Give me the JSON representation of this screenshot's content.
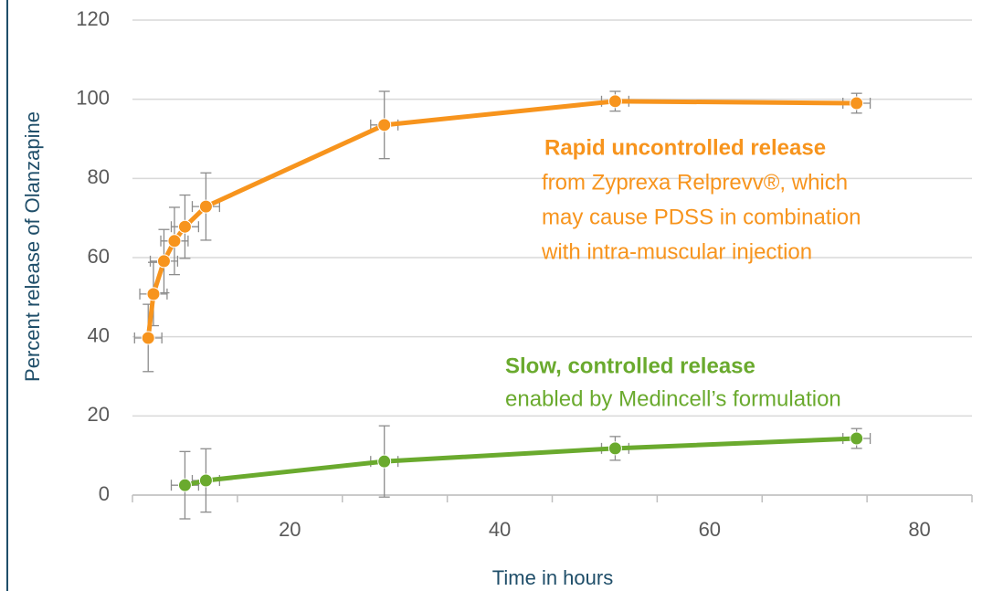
{
  "chart_data": {
    "type": "line",
    "xlabel": "Time in hours",
    "ylabel": "Percent release of Olanzapine",
    "xlim": [
      5,
      85
    ],
    "xticks": [
      20,
      40,
      60,
      80
    ],
    "xtick_marks": [
      5,
      15,
      25,
      35,
      45,
      55,
      65,
      75,
      85
    ],
    "ylim": [
      0,
      120
    ],
    "yticks": [
      0,
      20,
      40,
      60,
      80,
      100,
      120
    ],
    "grid": true,
    "series": [
      {
        "name": "Zyprexa Relprevv",
        "color": "#f7941d",
        "x": [
          6.5,
          7,
          8,
          9,
          10,
          12,
          29,
          51,
          74
        ],
        "values": [
          39.7,
          50.8,
          59.1,
          64.2,
          67.8,
          72.9,
          93.5,
          99.5,
          99
        ],
        "errors": [
          8.5,
          8,
          8,
          8.5,
          8,
          8.5,
          8.5,
          2.5,
          2.5
        ],
        "xerrors": [
          1.3,
          1.3,
          1.3,
          1.3,
          1.3,
          1.3,
          1.3,
          1.3,
          1.3
        ]
      },
      {
        "name": "Medincell formulation",
        "color": "#6aaa2e",
        "x": [
          10,
          12,
          29,
          51,
          74
        ],
        "values": [
          2.5,
          3.7,
          8.5,
          11.8,
          14.3
        ],
        "errors": [
          8.5,
          8,
          9,
          3,
          2.5
        ],
        "xerrors": [
          1.3,
          1.3,
          1.3,
          1.3,
          1.3
        ]
      }
    ],
    "annotations": [
      {
        "title": "Rapid uncontrolled release",
        "lines": [
          "from Zyprexa Relprevv®, which",
          "may cause PDSS in combination",
          "with intra-muscular injection"
        ],
        "color": "#f7941d"
      },
      {
        "title": "Slow, controlled release",
        "lines": [
          "enabled by Medincell’s formulation"
        ],
        "color": "#6aaa2e"
      }
    ]
  }
}
